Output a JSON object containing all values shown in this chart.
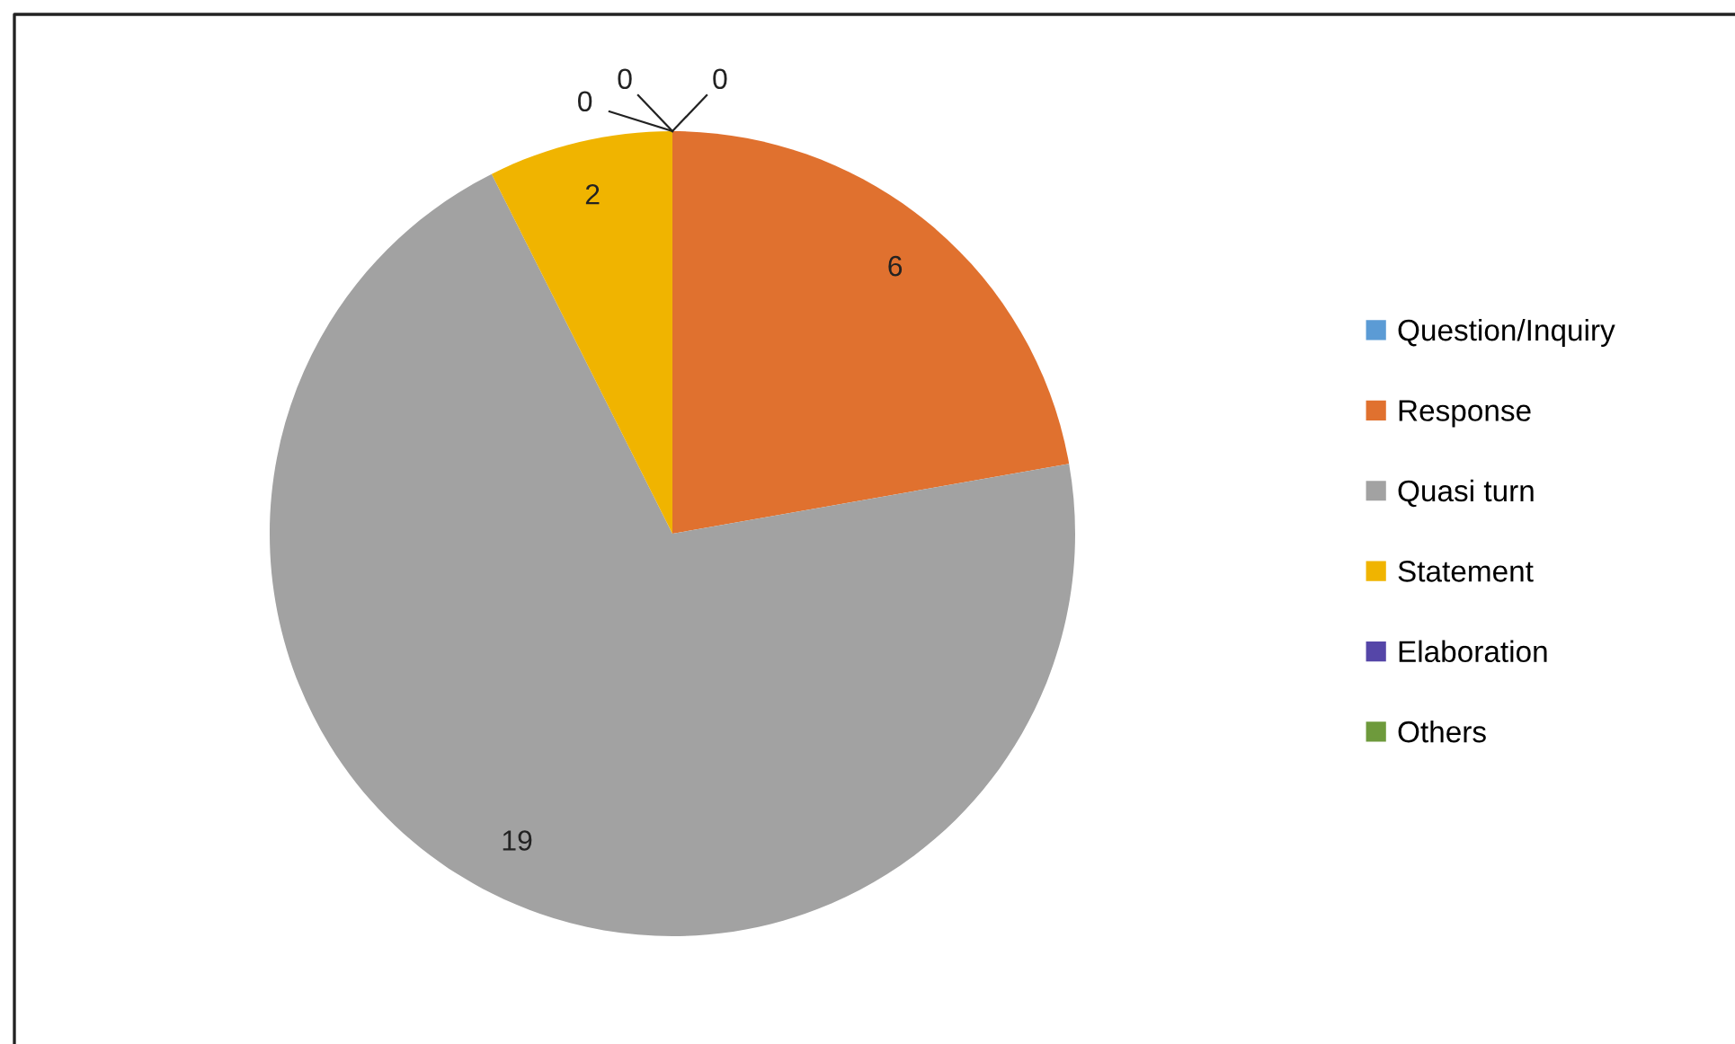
{
  "chart_data": {
    "type": "pie",
    "categories": [
      "Question/Inquiry",
      "Response",
      "Quasi turn",
      "Statement",
      "Elaboration",
      "Others"
    ],
    "values": [
      0,
      6,
      19,
      2,
      0,
      0
    ],
    "value_labels": [
      "0",
      "6",
      "19",
      "2",
      "0",
      "0"
    ],
    "colors": [
      "#5b9bd5",
      "#e0712f",
      "#a2a2a2",
      "#f0b400",
      "#5546a8",
      "#6e9a3c"
    ],
    "legend": "right"
  }
}
